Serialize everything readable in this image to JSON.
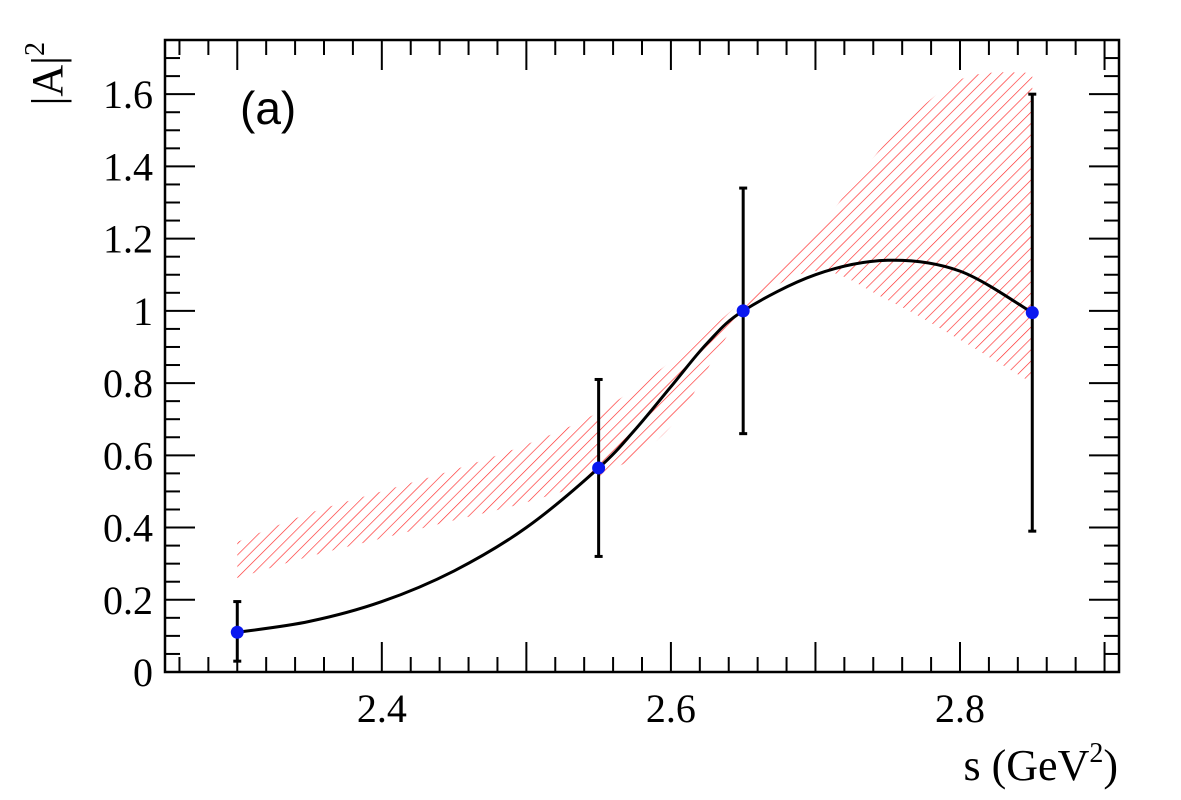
{
  "chart_data": {
    "type": "scatter",
    "panel_label": "(a)",
    "xlabel": {
      "main": "s (GeV",
      "sup": "2",
      "close": ")"
    },
    "ylabel": {
      "main": "|A|",
      "sup": "2"
    },
    "xlim": [
      2.25,
      2.91
    ],
    "ylim": [
      0,
      1.75
    ],
    "x_ticks": [
      {
        "value": 2.4,
        "label": "2.4"
      },
      {
        "value": 2.6,
        "label": "2.6"
      },
      {
        "value": 2.8,
        "label": "2.8"
      }
    ],
    "y_ticks": [
      {
        "value": 0,
        "label": "0"
      },
      {
        "value": 0.2,
        "label": "0.2"
      },
      {
        "value": 0.4,
        "label": "0.4"
      },
      {
        "value": 0.6,
        "label": "0.6"
      },
      {
        "value": 0.8,
        "label": "0.8"
      },
      {
        "value": 1.0,
        "label": "1"
      },
      {
        "value": 1.2,
        "label": "1.2"
      },
      {
        "value": 1.4,
        "label": "1.4"
      },
      {
        "value": 1.6,
        "label": "1.6"
      }
    ],
    "points": [
      {
        "x": 2.3,
        "y": 0.11,
        "err_low": 0.08,
        "err_high": 0.085
      },
      {
        "x": 2.55,
        "y": 0.565,
        "err_low": 0.245,
        "err_high": 0.245
      },
      {
        "x": 2.65,
        "y": 1.0,
        "err_low": 0.34,
        "err_high": 0.34
      },
      {
        "x": 2.85,
        "y": 0.995,
        "err_low": 0.605,
        "err_high": 0.605
      }
    ],
    "curve": {
      "x": [
        2.3,
        2.35,
        2.4,
        2.45,
        2.5,
        2.55,
        2.575,
        2.6,
        2.625,
        2.65,
        2.7,
        2.75,
        2.8,
        2.85
      ],
      "y": [
        0.11,
        0.14,
        0.195,
        0.28,
        0.4,
        0.565,
        0.67,
        0.79,
        0.91,
        1.0,
        1.1,
        1.14,
        1.11,
        0.995
      ]
    },
    "band": {
      "x": [
        2.3,
        2.35,
        2.4,
        2.45,
        2.5,
        2.55,
        2.6,
        2.65,
        2.7,
        2.75,
        2.8,
        2.85
      ],
      "lower": [
        0.26,
        0.32,
        0.37,
        0.42,
        0.47,
        0.54,
        0.68,
        0.99,
        1.11,
        1.03,
        0.92,
        0.8
      ],
      "upper": [
        0.36,
        0.44,
        0.5,
        0.56,
        0.63,
        0.72,
        0.86,
        1.03,
        1.22,
        1.47,
        1.64,
        1.66
      ]
    },
    "colors": {
      "points": "#0a18f0",
      "curve": "#000000",
      "band": "#ff2a2a",
      "errorbars": "#000000"
    }
  }
}
